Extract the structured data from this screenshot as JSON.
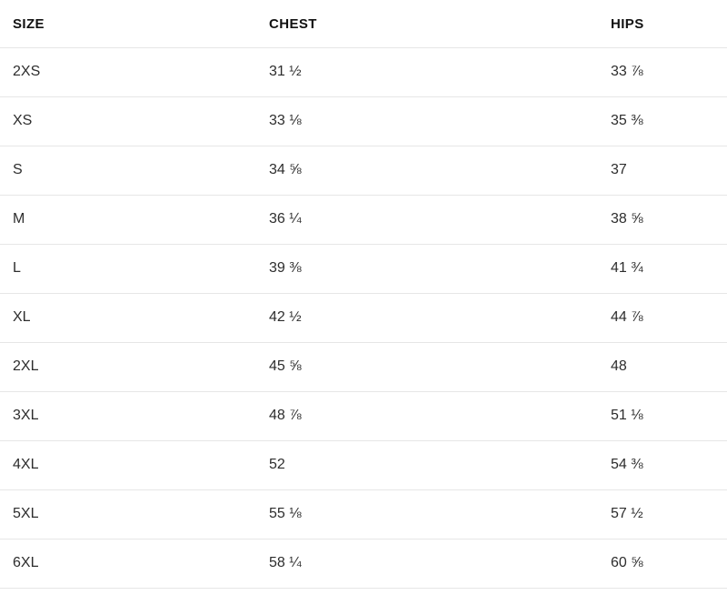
{
  "size_guide": {
    "table": {
      "columns": [
        {
          "key": "size",
          "label": "SIZE"
        },
        {
          "key": "chest",
          "label": "CHEST"
        },
        {
          "key": "hips",
          "label": "HIPS"
        }
      ],
      "rows": [
        {
          "size": "2XS",
          "chest": "31 ½",
          "hips": "33 ⅞"
        },
        {
          "size": "XS",
          "chest": "33 ⅛",
          "hips": "35 ⅜"
        },
        {
          "size": "S",
          "chest": "34 ⅝",
          "hips": "37"
        },
        {
          "size": "M",
          "chest": "36 ¼",
          "hips": "38 ⅝"
        },
        {
          "size": "L",
          "chest": "39 ⅜",
          "hips": "41 ¾"
        },
        {
          "size": "XL",
          "chest": "42 ½",
          "hips": "44 ⅞"
        },
        {
          "size": "2XL",
          "chest": "45 ⅝",
          "hips": "48"
        },
        {
          "size": "3XL",
          "chest": "48 ⅞",
          "hips": "51 ⅛"
        },
        {
          "size": "4XL",
          "chest": "52",
          "hips": "54 ⅜"
        },
        {
          "size": "5XL",
          "chest": "55 ⅛",
          "hips": "57 ½"
        },
        {
          "size": "6XL",
          "chest": "58 ¼",
          "hips": "60 ⅝"
        }
      ]
    },
    "colors": {
      "background": "#ffffff",
      "border": "#e6e6e6",
      "header_text": "#111111",
      "cell_text": "#2d2d2d"
    }
  }
}
